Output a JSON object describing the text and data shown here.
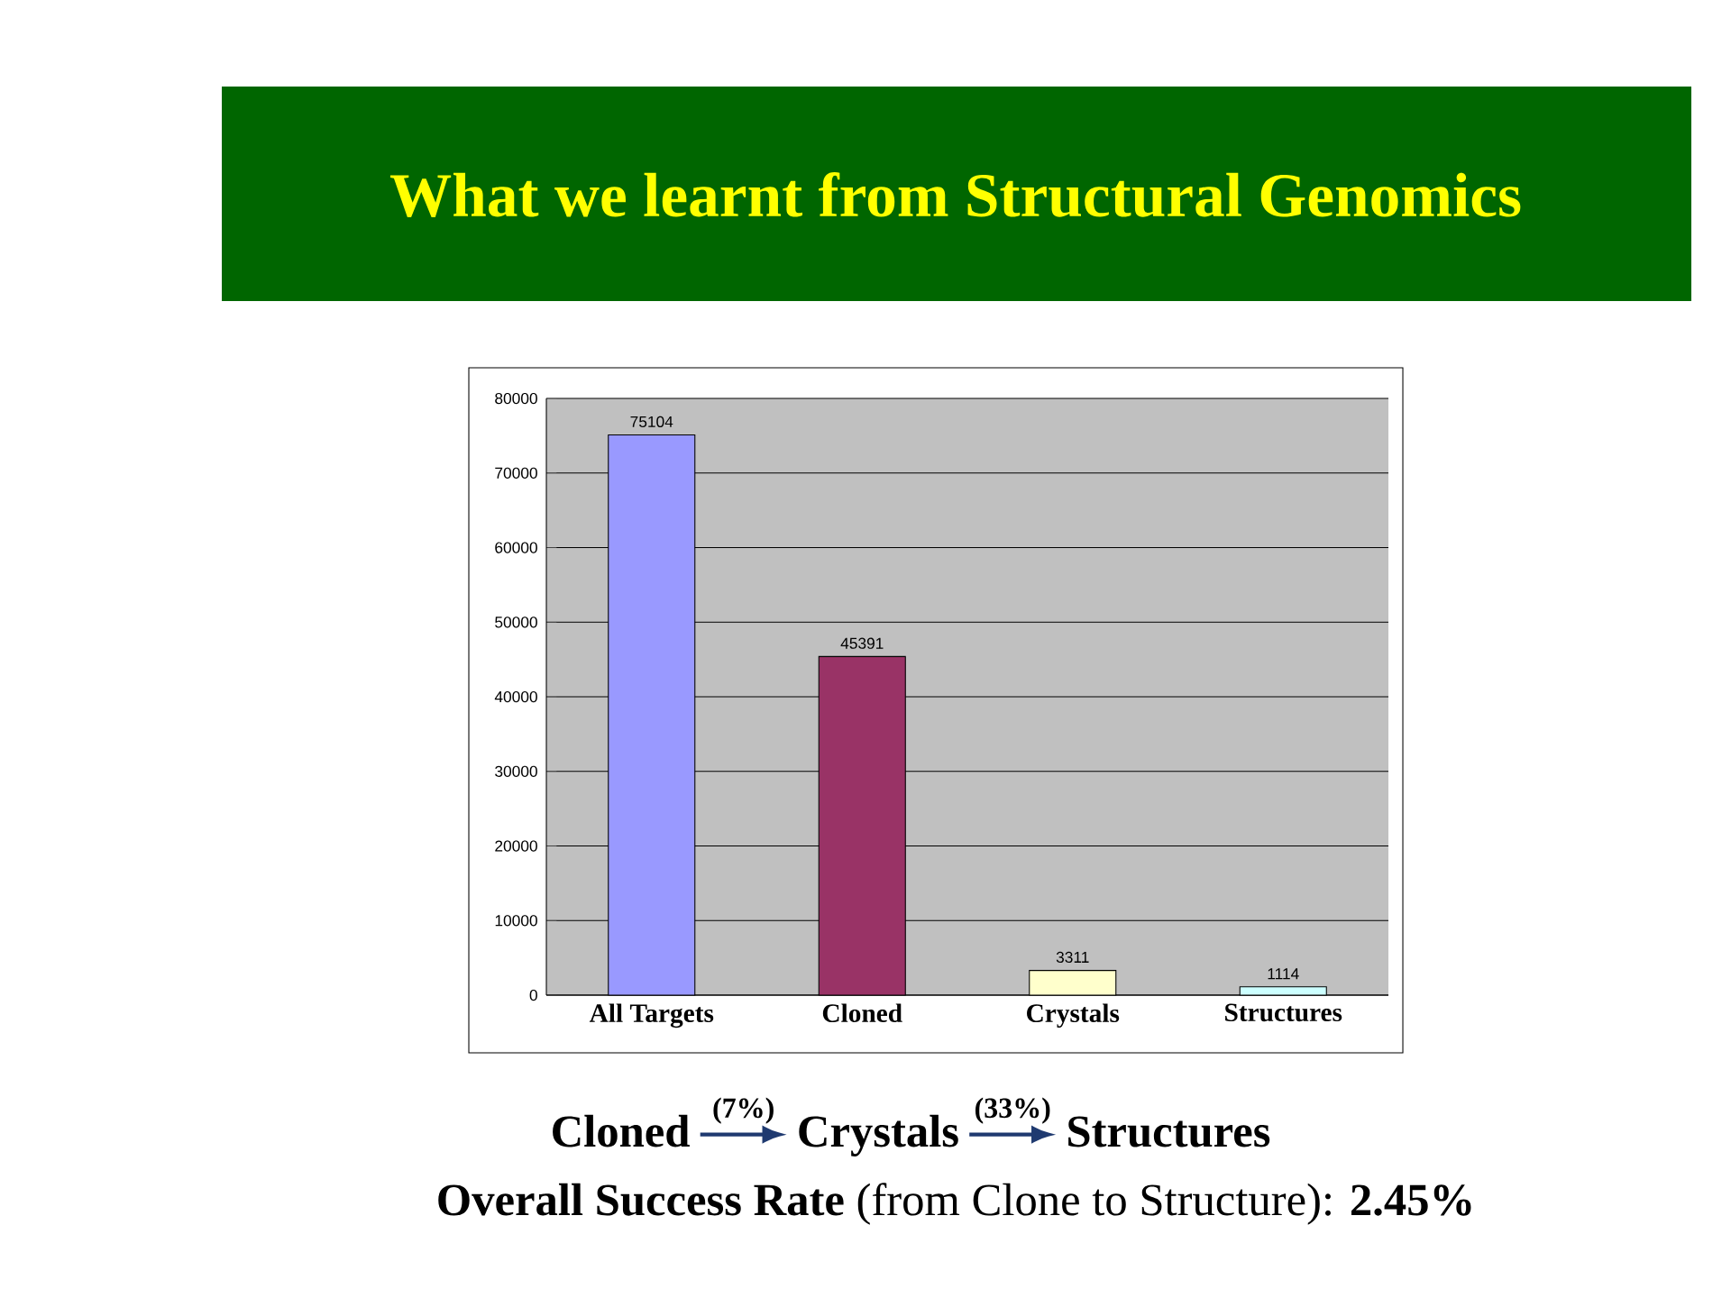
{
  "chart_data": {
    "type": "bar",
    "title": "What we learnt from Structural Genomics",
    "categories": [
      "All Targets",
      "Cloned",
      "Crystals",
      "Structures"
    ],
    "values": [
      75104,
      45391,
      3311,
      1114
    ],
    "colors": [
      "#9999ff",
      "#993366",
      "#ffffcc",
      "#ccffff"
    ],
    "ylim": [
      0,
      80000
    ],
    "yticks": [
      0,
      10000,
      20000,
      30000,
      40000,
      50000,
      60000,
      70000,
      80000
    ],
    "grid": "y",
    "data_labels": true,
    "annotations": [
      "Cloned",
      "(7%)",
      "Crystals",
      "(33%)",
      "Structures",
      "**Overall Success Rate** (from Clone to Structure): **2.45%**"
    ]
  }
}
